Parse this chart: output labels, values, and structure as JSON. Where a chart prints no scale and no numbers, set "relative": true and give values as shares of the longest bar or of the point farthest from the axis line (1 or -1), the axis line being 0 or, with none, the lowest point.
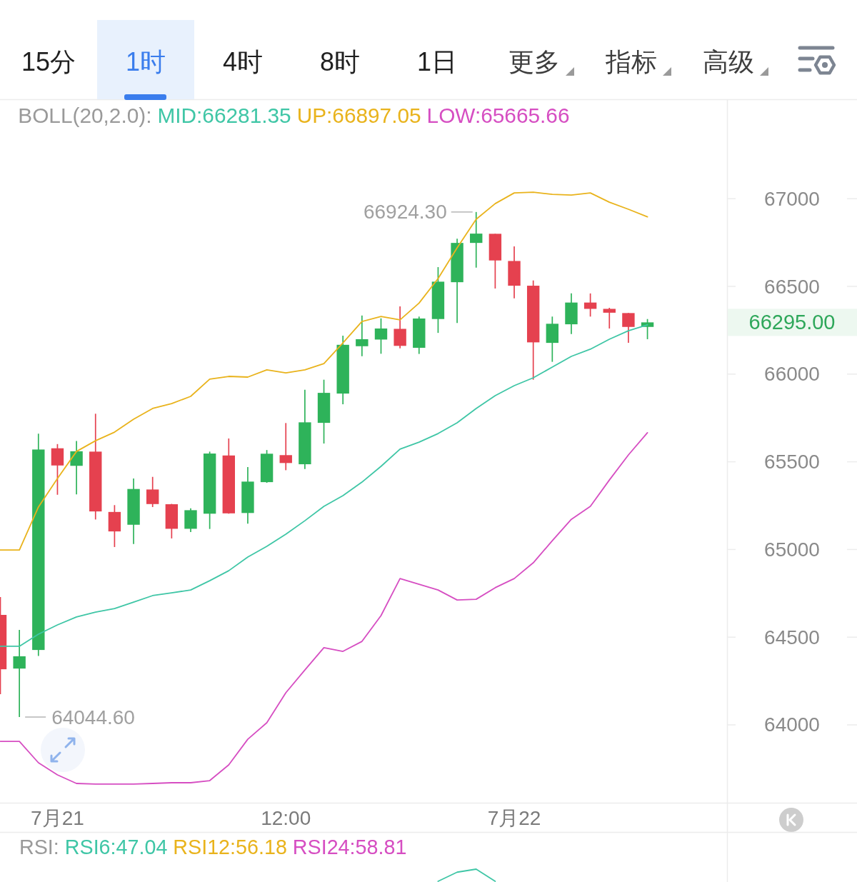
{
  "chart_data": [
    {
      "type": "candlestick",
      "legend_title": "BOLL(20,2.0):",
      "legend": "top",
      "categories": [
        null,
        null,
        null,
        "7月21",
        null,
        null,
        null,
        null,
        null,
        null,
        null,
        null,
        null,
        null,
        null,
        "12:00",
        null,
        null,
        null,
        null,
        null,
        null,
        null,
        null,
        null,
        null,
        null,
        "7月22",
        null,
        null,
        null,
        null,
        null,
        null,
        null
      ],
      "ohlc": [
        [
          64627,
          64729,
          64175,
          64317
        ],
        [
          64321,
          64541,
          64044.6,
          64391
        ],
        [
          64427,
          65660,
          64393,
          65570
        ],
        [
          65577,
          65601,
          65312,
          65479
        ],
        [
          65477,
          65619,
          65314,
          65560
        ],
        [
          65558,
          65774,
          65171,
          65217
        ],
        [
          65214,
          65253,
          65014,
          65103
        ],
        [
          65141,
          65405,
          65031,
          65345
        ],
        [
          65342,
          65414,
          65242,
          65259
        ],
        [
          65258,
          65260,
          65063,
          65118
        ],
        [
          65118,
          65235,
          65099,
          65224
        ],
        [
          65204,
          65558,
          65117,
          65547
        ],
        [
          65536,
          65633,
          65204,
          65206
        ],
        [
          65208,
          65470,
          65147,
          65387
        ],
        [
          65384,
          65567,
          65380,
          65546
        ],
        [
          65538,
          65721,
          65452,
          65493
        ],
        [
          65486,
          65911,
          65459,
          65725
        ],
        [
          65722,
          65968,
          65604,
          65893
        ],
        [
          65889,
          66219,
          65828,
          66167
        ],
        [
          66159,
          66334,
          66102,
          66199
        ],
        [
          66197,
          66318,
          66116,
          66260
        ],
        [
          66258,
          66386,
          66147,
          66161
        ],
        [
          66150,
          66328,
          66115,
          66317
        ],
        [
          66314,
          66610,
          66235,
          66527
        ],
        [
          66524,
          66772,
          66291,
          66748
        ],
        [
          66748,
          66924.3,
          66607,
          66801
        ],
        [
          66800,
          66800,
          66488,
          66648
        ],
        [
          66645,
          66728,
          66432,
          66504
        ],
        [
          66504,
          66534,
          65968,
          66181
        ],
        [
          66178,
          66328,
          66070,
          66287
        ],
        [
          66284,
          66460,
          66228,
          66408
        ],
        [
          66408,
          66460,
          66328,
          66372
        ],
        [
          66372,
          66378,
          66260,
          66350
        ],
        [
          66348,
          66348,
          66178,
          66269
        ],
        [
          66269,
          66314,
          66199,
          66295
        ]
      ],
      "colors": [
        "#e5414f",
        "#2eb35a",
        "#2eb35a",
        "#e5414f",
        "#2eb35a",
        "#e5414f",
        "#e5414f",
        "#2eb35a",
        "#e5414f",
        "#e5414f",
        "#2eb35a",
        "#2eb35a",
        "#e5414f",
        "#2eb35a",
        "#2eb35a",
        "#e5414f",
        "#2eb35a",
        "#2eb35a",
        "#2eb35a",
        "#2eb35a",
        "#2eb35a",
        "#e5414f",
        "#2eb35a",
        "#2eb35a",
        "#2eb35a",
        "#2eb35a",
        "#e5414f",
        "#e5414f",
        "#e5414f",
        "#2eb35a",
        "#2eb35a",
        "#e5414f",
        "#e5414f",
        "#e5414f",
        "#2eb35a"
      ],
      "series": [
        {
          "name": "MID:66281.35",
          "type": "line",
          "color": "#3fc6a6",
          "values": [
            64448,
            64448,
            64517,
            64570,
            64615,
            64643,
            64663,
            64700,
            64737,
            64753,
            64769,
            64822,
            64879,
            64957,
            65018,
            65087,
            65164,
            65246,
            65307,
            65384,
            65474,
            65572,
            65612,
            65661,
            65722,
            65804,
            65877,
            65934,
            65979,
            66040,
            66101,
            66142,
            66199,
            66247,
            66281
          ]
        },
        {
          "name": "UP:66897.05",
          "type": "line",
          "color": "#e9b31c",
          "values": [
            64997,
            64997,
            65242,
            65405,
            65559,
            65620,
            65669,
            65743,
            65804,
            65832,
            65873,
            65971,
            65987,
            65983,
            66024,
            66007,
            66024,
            66060,
            66178,
            66300,
            66329,
            66309,
            66405,
            66545,
            66720,
            66883,
            66972,
            67033,
            67037,
            67025,
            67021,
            67033,
            66980,
            66940,
            66897
          ]
        },
        {
          "name": "LOW:65665.66",
          "type": "line",
          "color": "#d64ec2",
          "values": [
            63906,
            63906,
            63784,
            63715,
            63666,
            63662,
            63662,
            63662,
            63666,
            63670,
            63670,
            63682,
            63772,
            63918,
            64012,
            64183,
            64313,
            64440,
            64419,
            64476,
            64623,
            64834,
            64802,
            64769,
            64712,
            64716,
            64782,
            64834,
            64924,
            65050,
            65172,
            65246,
            65396,
            65539,
            65666
          ]
        }
      ],
      "ylim": [
        63556,
        67563
      ],
      "yticks": [
        64000,
        64500,
        65000,
        65500,
        66000,
        66500,
        67000
      ],
      "annotations": [
        "15分",
        "1时",
        "4时",
        "8时",
        "1日",
        "更多",
        "指标",
        "高级",
        "66924.30",
        "64044.60",
        "66295.00"
      ]
    },
    {
      "type": "line",
      "relative": true,
      "legend_title": "RSI:",
      "legend": "top left",
      "categories": [
        null,
        null,
        null,
        null,
        null,
        null,
        null,
        null,
        null,
        null,
        null,
        null,
        null,
        null,
        null,
        null,
        null,
        null,
        null,
        null,
        null,
        null,
        null,
        null,
        null,
        null,
        null,
        null,
        null,
        null,
        null,
        null,
        null,
        null,
        null
      ],
      "series": [
        {
          "name": "RSI6:47.04",
          "color": "#3fc6a6",
          "values": [
            null,
            null,
            null,
            null,
            null,
            null,
            null,
            null,
            null,
            null,
            null,
            null,
            null,
            null,
            null,
            null,
            null,
            null,
            null,
            null,
            null,
            null,
            null,
            0,
            0.75,
            1,
            0,
            null,
            null,
            null,
            null,
            null,
            null,
            null,
            null
          ]
        },
        {
          "name": "RSI12:56.18",
          "color": "#e9b31c",
          "values": [
            null,
            null,
            null,
            null,
            null,
            null,
            null,
            null,
            null,
            null,
            null,
            null,
            null,
            null,
            null,
            null,
            null,
            null,
            null,
            null,
            null,
            null,
            null,
            null,
            null,
            null,
            null,
            null,
            null,
            null,
            null,
            null,
            null,
            null,
            null
          ]
        },
        {
          "name": "RSI24:58.81",
          "color": "#d64ec2",
          "values": [
            null,
            null,
            null,
            null,
            null,
            null,
            null,
            null,
            null,
            null,
            null,
            null,
            null,
            null,
            null,
            null,
            null,
            null,
            null,
            null,
            null,
            null,
            null,
            null,
            null,
            null,
            null,
            null,
            null,
            null,
            null,
            null,
            null,
            null,
            null
          ]
        }
      ]
    }
  ]
}
